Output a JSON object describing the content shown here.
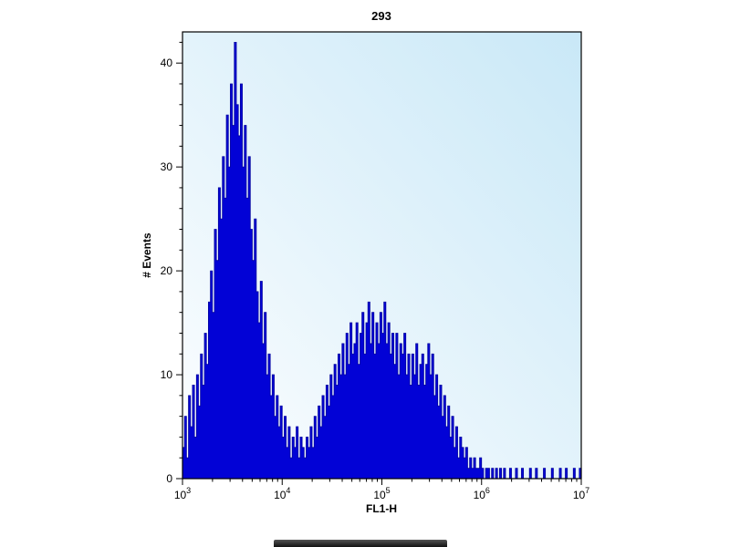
{
  "title": "293",
  "axes": {
    "xlabel": "FL1-H",
    "ylabel": "# Events",
    "x_tick_exponents": [
      "3",
      "4",
      "5",
      "6",
      "7"
    ],
    "x_tick_base": "10",
    "y_tick_labels": [
      "0",
      "10",
      "20",
      "30",
      "40"
    ]
  },
  "colors": {
    "histogram_fill": "#0202d6",
    "histogram_stroke": "#0000a0",
    "plot_bg_start": "#fdfeff",
    "plot_bg_end": "#c9e8f7",
    "axis": "#000000",
    "page_bg": "#ffffff"
  },
  "chart_data": {
    "type": "area",
    "subtype": "flow-cytometry-histogram",
    "title": "293",
    "xlabel": "FL1-H",
    "ylabel": "# Events",
    "x_scale": "log10",
    "x_range": [
      1000,
      10000000
    ],
    "ylim": [
      0,
      43
    ],
    "y_major_ticks": [
      0,
      10,
      20,
      30,
      40
    ],
    "legend": "none",
    "grid": "off",
    "log_start": 3,
    "log_step": 0.02,
    "peaks_summary": [
      {
        "center_x": 3300,
        "height": 42
      },
      {
        "center_x": 100000,
        "height": 17
      },
      {
        "center_x": 300000,
        "height": 12
      }
    ],
    "bins": [
      3,
      6,
      2,
      8,
      5,
      9,
      4,
      10,
      7,
      12,
      9,
      14,
      11,
      17,
      20,
      16,
      24,
      21,
      28,
      25,
      31,
      27,
      35,
      30,
      38,
      34,
      42,
      36,
      33,
      38,
      30,
      34,
      27,
      31,
      24,
      21,
      25,
      18,
      15,
      19,
      13,
      16,
      10,
      12,
      8,
      10,
      6,
      8,
      5,
      7,
      4,
      6,
      3,
      5,
      2,
      4,
      3,
      5,
      2,
      4,
      3,
      2,
      4,
      3,
      5,
      3,
      6,
      4,
      7,
      5,
      8,
      6,
      9,
      7,
      10,
      8,
      11,
      9,
      12,
      10,
      13,
      10,
      14,
      11,
      15,
      12,
      13,
      15,
      11,
      14,
      16,
      12,
      15,
      17,
      13,
      16,
      12,
      15,
      13,
      16,
      14,
      17,
      13,
      15,
      12,
      14,
      11,
      14,
      10,
      13,
      12,
      14,
      10,
      12,
      9,
      12,
      10,
      13,
      9,
      11,
      12,
      9,
      11,
      13,
      10,
      12,
      8,
      10,
      7,
      9,
      6,
      8,
      5,
      7,
      4,
      6,
      3,
      5,
      2,
      4,
      3,
      2,
      3,
      1,
      2,
      1,
      2,
      1,
      1,
      2,
      1,
      0,
      1,
      1,
      0,
      1,
      0,
      1,
      0,
      1,
      0,
      1,
      0,
      0,
      1,
      0,
      0,
      1,
      0,
      0,
      1,
      0,
      0,
      0,
      1,
      0,
      0,
      1,
      0,
      0,
      0,
      1,
      0,
      0,
      0,
      1,
      0,
      0,
      0,
      1,
      0,
      0,
      1,
      0,
      0,
      0,
      1,
      0,
      0,
      1
    ]
  }
}
